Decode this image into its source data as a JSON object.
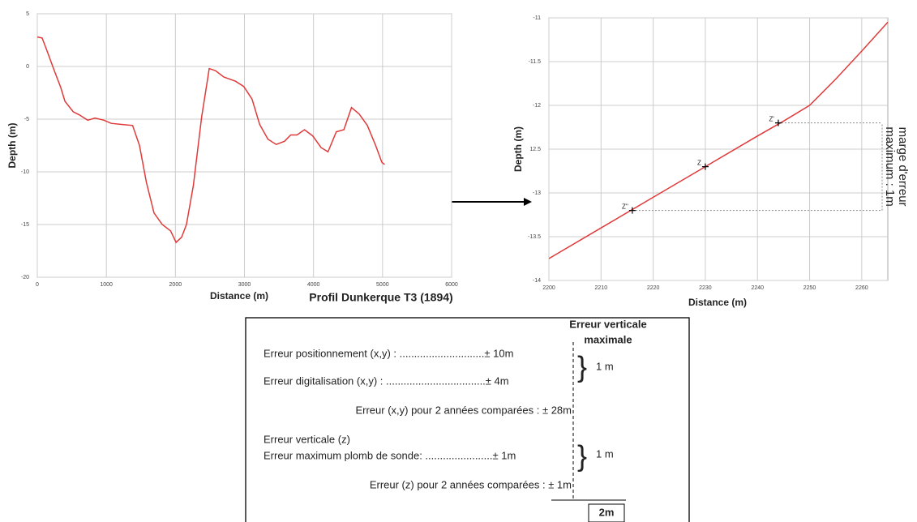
{
  "chart_data": [
    {
      "type": "line",
      "title": "Profil Dunkerque T3 (1894)",
      "x_label": "Distance (m)",
      "y_label": "Depth (m)",
      "x": [
        0,
        70,
        140,
        235,
        340,
        400,
        520,
        610,
        730,
        835,
        965,
        1070,
        1220,
        1380,
        1480,
        1580,
        1690,
        1810,
        1930,
        2010,
        2090,
        2160,
        2260,
        2380,
        2490,
        2580,
        2700,
        2870,
        2990,
        3110,
        3220,
        3340,
        3460,
        3580,
        3670,
        3760,
        3870,
        3990,
        4110,
        4210,
        4330,
        4440,
        4550,
        4660,
        4780,
        4900,
        4990,
        5030
      ],
      "values": [
        2.8,
        2.7,
        1.5,
        -0.2,
        -2,
        -3.3,
        -4.3,
        -4.6,
        -5.1,
        -4.9,
        -5.1,
        -5.4,
        -5.5,
        -5.6,
        -7.5,
        -11,
        -13.9,
        -15,
        -15.6,
        -16.7,
        -16.2,
        -15,
        -11.3,
        -4.8,
        -0.2,
        -0.4,
        -1,
        -1.4,
        -1.9,
        -3.1,
        -5.5,
        -6.9,
        -7.4,
        -7.1,
        -6.5,
        -6.5,
        -6,
        -6.6,
        -7.7,
        -8.1,
        -6.2,
        -6,
        -3.9,
        -4.5,
        -5.6,
        -7.5,
        -9.1,
        -9.3
      ],
      "color": "#e03a3a",
      "xlim": [
        0,
        6000
      ],
      "xticks": [
        0,
        1000,
        2000,
        3000,
        4000,
        5000,
        6000
      ],
      "ylim": [
        -20,
        5
      ],
      "yticks": [
        -20,
        -15,
        -10,
        -5,
        0,
        5
      ],
      "grid": true
    },
    {
      "type": "line",
      "x_label": "Distance (m)",
      "y_label": "Depth (m)",
      "x": [
        2200,
        2210,
        2220,
        2230,
        2240,
        2245,
        2250,
        2255,
        2260,
        2265
      ],
      "values": [
        -13.75,
        -13.4,
        -13.05,
        -12.7,
        -12.35,
        -12.18,
        -12.0,
        -11.7,
        -11.38,
        -11.05
      ],
      "color": "#e03a3a",
      "xlim": [
        2200,
        2265
      ],
      "xticks": [
        2200,
        2210,
        2220,
        2230,
        2240,
        2250,
        2260
      ],
      "ylim": [
        -14,
        -11
      ],
      "yticks": [
        -14,
        -13.5,
        -13,
        {
          "value": -12.5,
          "label": "12.5"
        },
        -12,
        -11.5,
        -11
      ],
      "grid": true,
      "points": {
        "labels": [
          "Z''",
          "Z",
          "Z'"
        ],
        "x": [
          2216,
          2230,
          2244
        ],
        "y": [
          -13.2,
          -12.7,
          -12.2
        ]
      },
      "annotation": [
        "marge d'erreur",
        "maximum : 1m"
      ]
    }
  ],
  "error_table": {
    "header": [
      "Erreur verticale",
      "maximale"
    ],
    "rows": [
      "Erreur positionnement (x,y) : .............................± 10m",
      "Erreur digitalisation (x,y) : ..................................± 4m",
      "Erreur (x,y) pour 2 années comparées : ± 28m",
      "Erreur verticale (z)",
      "Erreur maximum plomb de sonde: .......................± 1m",
      "Erreur (z) pour 2 années comparées : ± 1m"
    ],
    "brackets": [
      "1 m",
      "1 m"
    ],
    "scale_label": "2m"
  }
}
